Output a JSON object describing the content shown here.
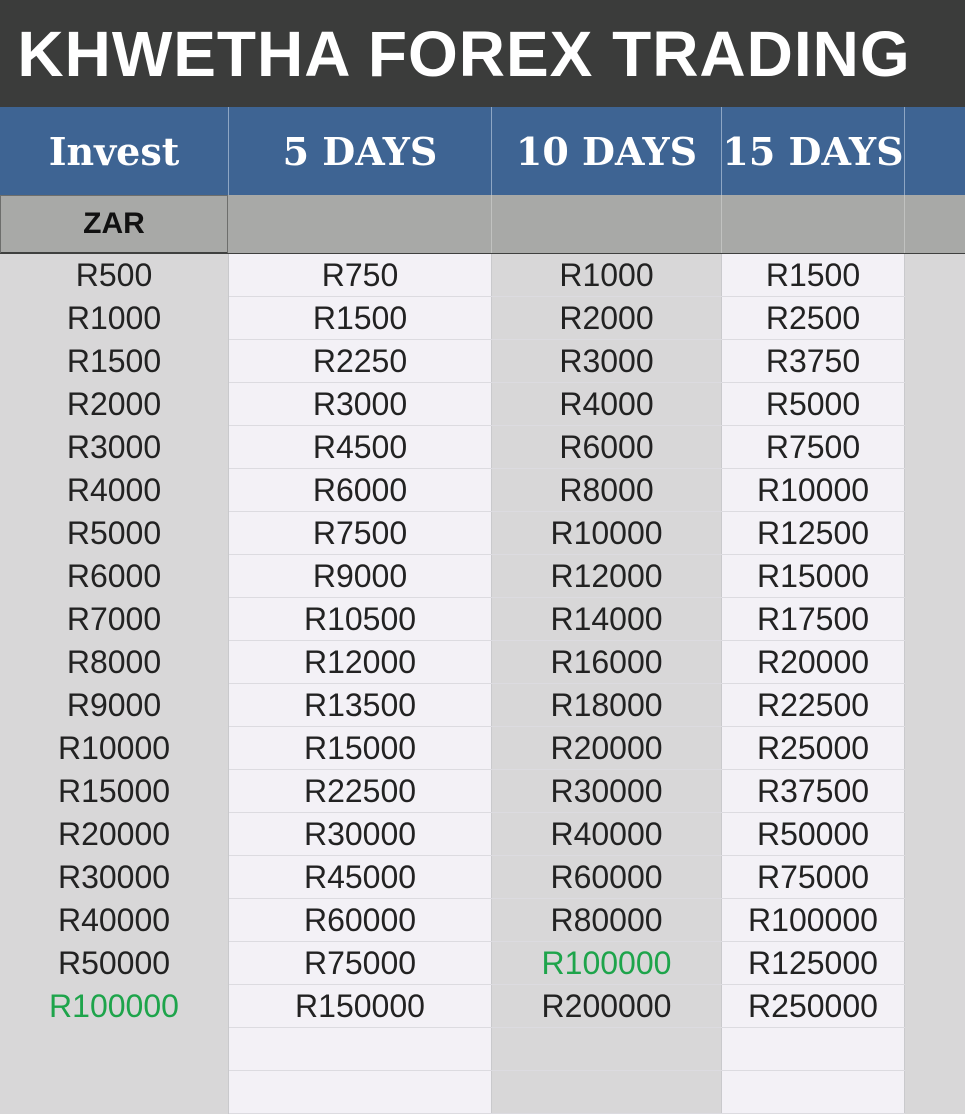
{
  "title": "KHWETHA FOREX TRADING",
  "headers": [
    "Invest",
    "5 DAYS",
    "10 DAYS",
    "15 DAYS"
  ],
  "currency": "ZAR",
  "colors": {
    "title_bg": "#3b3c3b",
    "header_bg": "#3e6493",
    "highlight": "#1ea44b"
  },
  "rows": [
    {
      "invest": "R500",
      "d5": "R750",
      "d10": "R1000",
      "d15": "R1500"
    },
    {
      "invest": "R1000",
      "d5": "R1500",
      "d10": "R2000",
      "d15": "R2500"
    },
    {
      "invest": "R1500",
      "d5": "R2250",
      "d10": "R3000",
      "d15": "R3750"
    },
    {
      "invest": "R2000",
      "d5": "R3000",
      "d10": "R4000",
      "d15": "R5000"
    },
    {
      "invest": "R3000",
      "d5": "R4500",
      "d10": "R6000",
      "d15": "R7500"
    },
    {
      "invest": "R4000",
      "d5": "R6000",
      "d10": "R8000",
      "d15": "R10000"
    },
    {
      "invest": "R5000",
      "d5": "R7500",
      "d10": "R10000",
      "d15": "R12500"
    },
    {
      "invest": "R6000",
      "d5": "R9000",
      "d10": "R12000",
      "d15": "R15000"
    },
    {
      "invest": "R7000",
      "d5": "R10500",
      "d10": "R14000",
      "d15": "R17500"
    },
    {
      "invest": "R8000",
      "d5": "R12000",
      "d10": "R16000",
      "d15": "R20000"
    },
    {
      "invest": "R9000",
      "d5": "R13500",
      "d10": "R18000",
      "d15": "R22500"
    },
    {
      "invest": "R10000",
      "d5": "R15000",
      "d10": "R20000",
      "d15": "R25000"
    },
    {
      "invest": "R15000",
      "d5": "R22500",
      "d10": "R30000",
      "d15": "R37500"
    },
    {
      "invest": "R20000",
      "d5": "R30000",
      "d10": "R40000",
      "d15": "R50000"
    },
    {
      "invest": "R30000",
      "d5": "R45000",
      "d10": "R60000",
      "d15": "R75000"
    },
    {
      "invest": "R40000",
      "d5": "R60000",
      "d10": "R80000",
      "d15": "R100000"
    },
    {
      "invest": "R50000",
      "d5": "R75000",
      "d10": "R100000",
      "d15": "R125000",
      "highlight": "d10"
    },
    {
      "invest": "R100000",
      "d5": "R150000",
      "d10": "R200000",
      "d15": "R250000",
      "highlight": "invest"
    },
    {
      "invest": "",
      "d5": "",
      "d10": "",
      "d15": ""
    },
    {
      "invest": "",
      "d5": "",
      "d10": "",
      "d15": ""
    }
  ]
}
